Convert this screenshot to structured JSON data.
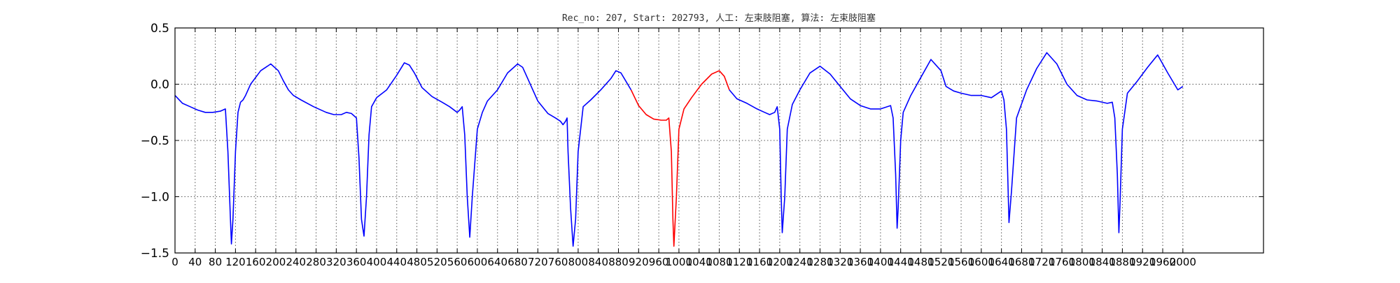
{
  "chart_data": {
    "type": "line",
    "title": "Rec_no: 207, Start: 202793, 人工: 左束肢阻塞, 算法: 左束肢阻塞",
    "xlabel": "",
    "ylabel": "",
    "xlim": [
      0,
      2160
    ],
    "ylim": [
      -1.5,
      0.5
    ],
    "yticks": [
      -1.5,
      -1.0,
      -0.5,
      0.0,
      0.5
    ],
    "ytick_labels": [
      "−1.5",
      "−1.0",
      "−0.5",
      "0.0",
      "0.5"
    ],
    "xtick_step": 40,
    "xtick_max": 2000,
    "xtick_labels": [
      "0",
      "40",
      "80",
      "120",
      "160",
      "200",
      "240",
      "280",
      "320",
      "360",
      "400",
      "440",
      "480",
      "520",
      "560",
      "600",
      "640",
      "680",
      "720",
      "760",
      "800",
      "840",
      "880",
      "920",
      "960",
      "1000",
      "1040",
      "1080",
      "1120",
      "1160",
      "1200",
      "1240",
      "1280",
      "1320",
      "1360",
      "1400",
      "1440",
      "1480",
      "1520",
      "1560",
      "1600",
      "1640",
      "1680",
      "1720",
      "1760",
      "1800",
      "1840",
      "1880",
      "1920",
      "1960",
      "2000"
    ],
    "grid": true,
    "series": [
      {
        "color": "#0000ff",
        "x": [
          0,
          15,
          30,
          45,
          60,
          75,
          90,
          100,
          105,
          110,
          112,
          115,
          120,
          125,
          130,
          135,
          140,
          145,
          150,
          170,
          190,
          205,
          215,
          225,
          235,
          250,
          275,
          300,
          315,
          330,
          340,
          350,
          360,
          365,
          370,
          375,
          380,
          385,
          390,
          400,
          420,
          440,
          455,
          465,
          475,
          490,
          510,
          530,
          545,
          560,
          565,
          570,
          575,
          580,
          585,
          590,
          600,
          610,
          620,
          640,
          660,
          680,
          690,
          700,
          720,
          740,
          755,
          765,
          770,
          775,
          778,
          780,
          785,
          790,
          795,
          800,
          810,
          825,
          845,
          865,
          875,
          885,
          905
        ],
        "y": [
          -0.1,
          -0.17,
          -0.2,
          -0.23,
          -0.25,
          -0.25,
          -0.24,
          -0.22,
          -0.6,
          -1.2,
          -1.42,
          -1.2,
          -0.6,
          -0.25,
          -0.16,
          -0.14,
          -0.1,
          -0.05,
          0.0,
          0.12,
          0.18,
          0.12,
          0.03,
          -0.05,
          -0.1,
          -0.14,
          -0.2,
          -0.25,
          -0.27,
          -0.27,
          -0.25,
          -0.26,
          -0.3,
          -0.65,
          -1.2,
          -1.35,
          -1.0,
          -0.45,
          -0.2,
          -0.12,
          -0.05,
          0.08,
          0.19,
          0.17,
          0.1,
          -0.03,
          -0.11,
          -0.16,
          -0.2,
          -0.25,
          -0.23,
          -0.2,
          -0.45,
          -1.0,
          -1.36,
          -1.0,
          -0.4,
          -0.25,
          -0.15,
          -0.05,
          0.1,
          0.18,
          0.15,
          0.05,
          -0.15,
          -0.26,
          -0.3,
          -0.33,
          -0.36,
          -0.33,
          -0.3,
          -0.6,
          -1.1,
          -1.44,
          -1.2,
          -0.6,
          -0.2,
          -0.14,
          -0.05,
          0.05,
          0.12,
          0.1,
          -0.05
        ]
      },
      {
        "color": "#ff0000",
        "x": [
          905,
          920,
          935,
          950,
          965,
          975,
          980,
          985,
          988,
          990,
          995,
          1000,
          1010,
          1025,
          1045,
          1065,
          1080,
          1090,
          1100
        ],
        "y": [
          -0.05,
          -0.19,
          -0.27,
          -0.31,
          -0.32,
          -0.32,
          -0.3,
          -0.6,
          -1.2,
          -1.44,
          -1.0,
          -0.4,
          -0.22,
          -0.12,
          0.0,
          0.09,
          0.12,
          0.07,
          -0.05
        ]
      },
      {
        "color": "#0000ff",
        "x": [
          1100,
          1115,
          1135,
          1155,
          1170,
          1180,
          1190,
          1195,
          1200,
          1203,
          1205,
          1210,
          1215,
          1225,
          1240,
          1260,
          1280,
          1300,
          1320,
          1340,
          1360,
          1380,
          1400,
          1420,
          1425,
          1430,
          1433,
          1435,
          1440,
          1445,
          1460,
          1480,
          1500,
          1520,
          1530,
          1545,
          1560,
          1580,
          1600,
          1620,
          1640,
          1645,
          1650,
          1653,
          1655,
          1660,
          1670,
          1690,
          1710,
          1730,
          1750,
          1770,
          1790,
          1810,
          1830,
          1850,
          1860,
          1865,
          1870,
          1873,
          1875,
          1880,
          1890,
          1910,
          1930,
          1950,
          1970,
          1990,
          2000
        ],
        "y": [
          -0.05,
          -0.13,
          -0.17,
          -0.22,
          -0.25,
          -0.27,
          -0.25,
          -0.2,
          -0.4,
          -1.0,
          -1.32,
          -1.0,
          -0.4,
          -0.18,
          -0.05,
          0.1,
          0.16,
          0.09,
          -0.02,
          -0.13,
          -0.19,
          -0.22,
          -0.22,
          -0.19,
          -0.3,
          -0.8,
          -1.28,
          -1.1,
          -0.5,
          -0.25,
          -0.1,
          0.06,
          0.22,
          0.12,
          -0.02,
          -0.06,
          -0.08,
          -0.1,
          -0.1,
          -0.12,
          -0.06,
          -0.14,
          -0.4,
          -0.9,
          -1.23,
          -0.95,
          -0.3,
          -0.05,
          0.14,
          0.28,
          0.18,
          0.0,
          -0.1,
          -0.14,
          -0.15,
          -0.17,
          -0.16,
          -0.3,
          -0.8,
          -1.32,
          -1.1,
          -0.4,
          -0.08,
          0.03,
          0.15,
          0.26,
          0.1,
          -0.05,
          -0.02
        ]
      }
    ]
  }
}
